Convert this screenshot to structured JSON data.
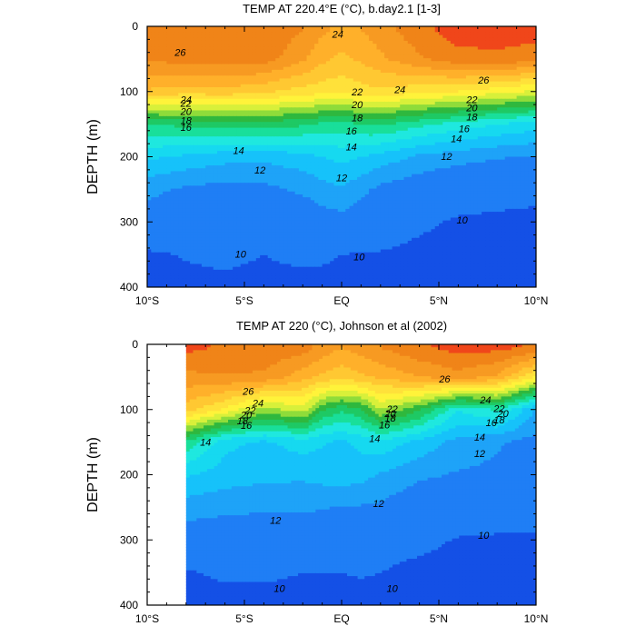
{
  "colors": {
    "levels": [
      8,
      10,
      12,
      13,
      14,
      15,
      16,
      17,
      18,
      19,
      20,
      21,
      22,
      23,
      24,
      25,
      26,
      27
    ],
    "palette": [
      "#1450e6",
      "#1f7ef5",
      "#1ea3f8",
      "#16c2fa",
      "#16d9f0",
      "#1fe8df",
      "#19df9a",
      "#1ec964",
      "#2fb83e",
      "#8fdc3a",
      "#d8f03a",
      "#fff33a",
      "#ffe13a",
      "#ffc832",
      "#ffb02a",
      "#f79a22",
      "#f08418",
      "#f0461a"
    ]
  },
  "chart_data": [
    {
      "type": "contour",
      "title": "TEMP AT 220.4°E (°C), b.day2.1 [1-3]",
      "xlabel": "",
      "ylabel": "DEPTH (m)",
      "xlim": [
        -10,
        10
      ],
      "ylim": [
        400,
        0
      ],
      "x_ticks": [
        {
          "value": -10,
          "label": "10°S"
        },
        {
          "value": -5,
          "label": "5°S"
        },
        {
          "value": 0,
          "label": "EQ"
        },
        {
          "value": 5,
          "label": "5°N"
        },
        {
          "value": 10,
          "label": "10°N"
        }
      ],
      "y_ticks": [
        {
          "value": 0,
          "label": "0"
        },
        {
          "value": 100,
          "label": "100"
        },
        {
          "value": 200,
          "label": "200"
        },
        {
          "value": 300,
          "label": "300"
        },
        {
          "value": 400,
          "label": "400"
        }
      ],
      "data_x_range": [
        -10,
        10
      ],
      "latitudes": [
        -10,
        -8,
        -6,
        -4,
        -2,
        -1,
        0,
        1,
        2,
        4,
        6,
        8,
        10
      ],
      "depths": [
        5,
        50,
        100,
        150,
        200,
        250,
        300,
        350,
        400
      ],
      "temperature": [
        [
          26.8,
          26.9,
          27.0,
          26.9,
          26.0,
          25.2,
          24.7,
          25.0,
          25.6,
          26.6,
          27.6,
          27.6,
          27.4
        ],
        [
          26.2,
          26.4,
          26.6,
          26.5,
          25.2,
          24.3,
          23.7,
          24.2,
          24.8,
          25.9,
          26.6,
          26.7,
          26.5
        ],
        [
          23.8,
          23.5,
          23.6,
          23.2,
          22.6,
          22.4,
          22.3,
          22.6,
          22.8,
          22.3,
          22.0,
          21.4,
          20.8
        ],
        [
          17.0,
          17.3,
          17.5,
          17.6,
          17.2,
          16.8,
          16.6,
          17.0,
          17.2,
          16.3,
          15.6,
          15.0,
          14.5
        ],
        [
          14.2,
          13.8,
          13.4,
          13.3,
          13.6,
          14.0,
          14.3,
          14.0,
          13.6,
          12.8,
          12.4,
          12.1,
          11.9
        ],
        [
          12.3,
          11.8,
          11.6,
          11.7,
          12.2,
          12.6,
          12.9,
          12.3,
          11.7,
          11.2,
          10.9,
          10.6,
          10.3
        ],
        [
          11.4,
          11.0,
          10.9,
          10.9,
          11.1,
          11.4,
          11.6,
          11.2,
          10.9,
          10.3,
          9.8,
          9.7,
          9.7
        ],
        [
          9.8,
          10.1,
          10.3,
          10.0,
          10.3,
          10.2,
          10.0,
          9.9,
          9.9,
          9.6,
          9.5,
          9.4,
          9.3
        ],
        [
          9.4,
          9.6,
          9.7,
          9.6,
          9.6,
          9.6,
          9.6,
          9.5,
          9.4,
          9.3,
          9.2,
          9.1,
          8.9
        ]
      ],
      "contour_labels": [
        {
          "value": 26,
          "lat": -8.3,
          "depth": 40,
          "text": "26"
        },
        {
          "value": 24,
          "lat": -0.2,
          "depth": 12,
          "text": "24"
        },
        {
          "value": 26,
          "lat": 7.3,
          "depth": 82,
          "text": "26"
        },
        {
          "value": 24,
          "lat": 3.0,
          "depth": 97,
          "text": "24"
        },
        {
          "value": 22,
          "lat": -8.0,
          "depth": 118,
          "text": "22"
        },
        {
          "value": 24,
          "lat": -8.0,
          "depth": 112,
          "text": "24"
        },
        {
          "value": 20,
          "lat": -8.0,
          "depth": 130,
          "text": "20"
        },
        {
          "value": 18,
          "lat": -8.0,
          "depth": 144,
          "text": "18"
        },
        {
          "value": 16,
          "lat": -8.0,
          "depth": 155,
          "text": "16"
        },
        {
          "value": 22,
          "lat": 0.8,
          "depth": 100,
          "text": "22"
        },
        {
          "value": 20,
          "lat": 0.8,
          "depth": 120,
          "text": "20"
        },
        {
          "value": 18,
          "lat": 0.8,
          "depth": 140,
          "text": "18"
        },
        {
          "value": 16,
          "lat": 0.5,
          "depth": 160,
          "text": "16"
        },
        {
          "value": 14,
          "lat": 0.5,
          "depth": 185,
          "text": "14"
        },
        {
          "value": 14,
          "lat": -5.3,
          "depth": 190,
          "text": "14"
        },
        {
          "value": 12,
          "lat": -4.2,
          "depth": 220,
          "text": "12"
        },
        {
          "value": 12,
          "lat": 0.0,
          "depth": 232,
          "text": "12"
        },
        {
          "value": 22,
          "lat": 6.7,
          "depth": 112,
          "text": "22"
        },
        {
          "value": 20,
          "lat": 6.7,
          "depth": 125,
          "text": "20"
        },
        {
          "value": 18,
          "lat": 6.7,
          "depth": 139,
          "text": "18"
        },
        {
          "value": 16,
          "lat": 6.3,
          "depth": 157,
          "text": "16"
        },
        {
          "value": 14,
          "lat": 5.9,
          "depth": 172,
          "text": "14"
        },
        {
          "value": 12,
          "lat": 5.4,
          "depth": 199,
          "text": "12"
        },
        {
          "value": 10,
          "lat": 6.2,
          "depth": 297,
          "text": "10"
        },
        {
          "value": 10,
          "lat": -5.2,
          "depth": 349,
          "text": "10"
        },
        {
          "value": 10,
          "lat": 0.9,
          "depth": 353,
          "text": "10"
        }
      ]
    },
    {
      "type": "contour",
      "title": "TEMP AT 220 (°C), Johnson et al (2002)",
      "xlabel": "",
      "ylabel": "DEPTH (m)",
      "xlim": [
        -10,
        10
      ],
      "ylim": [
        400,
        0
      ],
      "x_ticks": [
        {
          "value": -10,
          "label": "10°S"
        },
        {
          "value": -5,
          "label": "5°S"
        },
        {
          "value": 0,
          "label": "EQ"
        },
        {
          "value": 5,
          "label": "5°N"
        },
        {
          "value": 10,
          "label": "10°N"
        }
      ],
      "y_ticks": [
        {
          "value": 0,
          "label": "0"
        },
        {
          "value": 100,
          "label": "100"
        },
        {
          "value": 200,
          "label": "200"
        },
        {
          "value": 300,
          "label": "300"
        },
        {
          "value": 400,
          "label": "400"
        }
      ],
      "data_x_range": [
        -8,
        10
      ],
      "latitudes": [
        -8,
        -6,
        -4,
        -2,
        -1,
        0,
        1,
        2,
        4,
        6,
        8,
        10
      ],
      "depths": [
        5,
        50,
        100,
        150,
        200,
        250,
        300,
        350,
        400
      ],
      "temperature": [
        [
          27.3,
          26.8,
          26.8,
          26.5,
          25.6,
          25.0,
          25.5,
          26.0,
          26.8,
          27.4,
          27.3,
          26.8
        ],
        [
          25.7,
          25.9,
          25.8,
          24.4,
          23.8,
          23.4,
          23.8,
          24.2,
          25.0,
          25.6,
          24.8,
          22.0
        ],
        [
          23.5,
          21.9,
          19.6,
          20.6,
          18.1,
          17.3,
          17.9,
          20.0,
          18.2,
          15.1,
          16.2,
          12.9
        ],
        [
          16.8,
          14.3,
          13.8,
          14.5,
          14.1,
          13.8,
          14.3,
          14.7,
          13.7,
          12.6,
          12.1,
          11.6
        ],
        [
          14.1,
          13.5,
          13.3,
          13.2,
          13.4,
          13.6,
          13.4,
          12.9,
          12.2,
          11.9,
          11.8,
          11.6
        ],
        [
          12.5,
          12.3,
          12.2,
          12.2,
          12.1,
          11.9,
          11.9,
          11.8,
          11.2,
          11.0,
          10.9,
          10.7
        ],
        [
          11.3,
          11.1,
          11.0,
          10.9,
          10.9,
          10.8,
          10.7,
          10.6,
          10.4,
          9.9,
          9.8,
          9.8
        ],
        [
          9.9,
          10.2,
          10.2,
          10.0,
          10.0,
          10.0,
          10.1,
          10.0,
          9.6,
          9.4,
          9.3,
          9.2
        ],
        [
          9.4,
          9.6,
          9.6,
          9.6,
          9.6,
          9.6,
          9.6,
          9.5,
          9.3,
          9.1,
          9.0,
          8.9
        ]
      ],
      "contour_labels": [
        {
          "value": 26,
          "lat": -4.8,
          "depth": 72,
          "text": "26"
        },
        {
          "value": 24,
          "lat": -4.3,
          "depth": 90,
          "text": "24"
        },
        {
          "value": 22,
          "lat": -4.7,
          "depth": 101,
          "text": "22"
        },
        {
          "value": 20,
          "lat": -4.9,
          "depth": 108,
          "text": "20"
        },
        {
          "value": 18,
          "lat": -5.1,
          "depth": 117,
          "text": "18"
        },
        {
          "value": 16,
          "lat": -4.9,
          "depth": 124,
          "text": "16"
        },
        {
          "value": 14,
          "lat": -7.0,
          "depth": 150,
          "text": "14"
        },
        {
          "value": 26,
          "lat": 5.3,
          "depth": 53,
          "text": "26"
        },
        {
          "value": 22,
          "lat": 2.6,
          "depth": 99,
          "text": "22"
        },
        {
          "value": 20,
          "lat": 2.5,
          "depth": 106,
          "text": "20"
        },
        {
          "value": 18,
          "lat": 2.5,
          "depth": 113,
          "text": "18"
        },
        {
          "value": 16,
          "lat": 2.2,
          "depth": 123,
          "text": "16"
        },
        {
          "value": 14,
          "lat": 1.7,
          "depth": 144,
          "text": "14"
        },
        {
          "value": 24,
          "lat": 7.4,
          "depth": 85,
          "text": "24"
        },
        {
          "value": 22,
          "lat": 8.1,
          "depth": 98,
          "text": "22"
        },
        {
          "value": 20,
          "lat": 8.3,
          "depth": 106,
          "text": "20"
        },
        {
          "value": 18,
          "lat": 8.1,
          "depth": 116,
          "text": "18"
        },
        {
          "value": 16,
          "lat": 7.7,
          "depth": 120,
          "text": "16"
        },
        {
          "value": 14,
          "lat": 7.1,
          "depth": 142,
          "text": "14"
        },
        {
          "value": 12,
          "lat": 7.1,
          "depth": 167,
          "text": "12"
        },
        {
          "value": 12,
          "lat": 1.9,
          "depth": 244,
          "text": "12"
        },
        {
          "value": 12,
          "lat": -3.4,
          "depth": 270,
          "text": "12"
        },
        {
          "value": 10,
          "lat": 7.3,
          "depth": 293,
          "text": "10"
        },
        {
          "value": 10,
          "lat": -3.2,
          "depth": 374,
          "text": "10"
        },
        {
          "value": 10,
          "lat": 2.6,
          "depth": 374,
          "text": "10"
        }
      ]
    }
  ]
}
